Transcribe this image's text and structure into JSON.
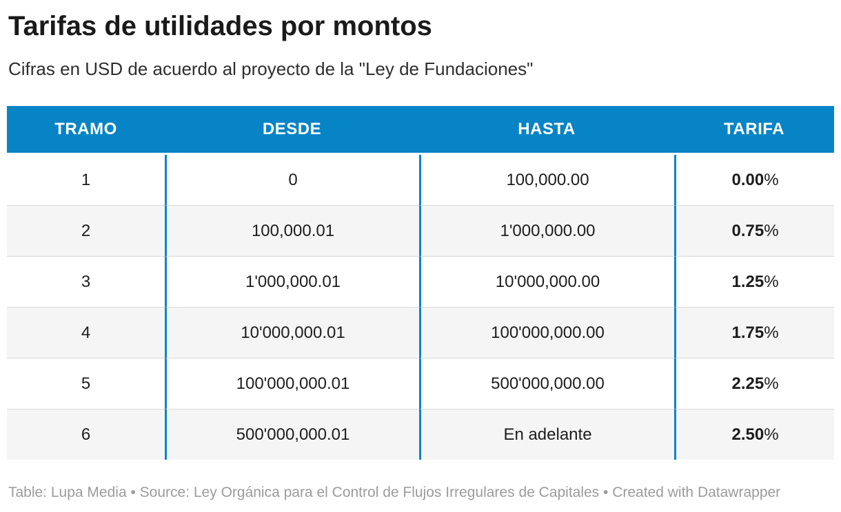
{
  "header": {
    "title": "Tarifas de utilidades por montos",
    "subtitle": "Cifras en USD de acuerdo al proyecto de la \"Ley de Fundaciones\""
  },
  "table": {
    "columns": [
      "TRAMO",
      "DESDE",
      "HASTA",
      "TARIFA"
    ],
    "tarifa_suffix": "%",
    "rows": [
      {
        "tramo": "1",
        "desde": "0",
        "hasta": "100,000.00",
        "tarifa": "0.00"
      },
      {
        "tramo": "2",
        "desde": "100,000.01",
        "hasta": "1'000,000.00",
        "tarifa": "0.75"
      },
      {
        "tramo": "3",
        "desde": "1'000,000.01",
        "hasta": "10'000,000.00",
        "tarifa": "1.25"
      },
      {
        "tramo": "4",
        "desde": "10'000,000.01",
        "hasta": "100'000,000.00",
        "tarifa": "1.75"
      },
      {
        "tramo": "5",
        "desde": "100'000,000.01",
        "hasta": "500'000,000.00",
        "tarifa": "2.25"
      },
      {
        "tramo": "6",
        "desde": "500'000,000.01",
        "hasta": "En adelante",
        "tarifa": "2.50"
      }
    ]
  },
  "footer": {
    "table_label": "Table: ",
    "table_source": "Lupa Media",
    "sep1": " • ",
    "source_label": "Source: ",
    "source_name": "Ley Orgánica para el Control de Flujos Irregulares de Capitales",
    "sep2": " • ",
    "attribution": "Created with Datawrapper"
  },
  "colors": {
    "header_background": "#0784c6",
    "header_text": "#ffffff",
    "column_divider": "#0784c6",
    "row_stripe": "#f5f5f5",
    "row_border": "#d9d9d9",
    "title_text": "#1a1a1a",
    "body_text": "#1d1d1d",
    "footer_text": "#9b9b9b"
  },
  "chart_data": {
    "type": "table",
    "title": "Tarifas de utilidades por montos",
    "subtitle": "Cifras en USD de acuerdo al proyecto de la \"Ley de Fundaciones\"",
    "columns": [
      "TRAMO",
      "DESDE",
      "HASTA",
      "TARIFA"
    ],
    "rows": [
      [
        "1",
        "0",
        "100,000.00",
        "0.00%"
      ],
      [
        "2",
        "100,000.01",
        "1'000,000.00",
        "0.75%"
      ],
      [
        "3",
        "1'000,000.01",
        "10'000,000.00",
        "1.25%"
      ],
      [
        "4",
        "10'000,000.01",
        "100'000,000.00",
        "1.75%"
      ],
      [
        "5",
        "100'000,000.01",
        "500'000,000.00",
        "2.25%"
      ],
      [
        "6",
        "500'000,000.01",
        "En adelante",
        "2.50%"
      ]
    ],
    "layout": {
      "striped_rows": true,
      "column_dividers": true,
      "header_style": "solid-blue",
      "alignment": "center"
    }
  }
}
